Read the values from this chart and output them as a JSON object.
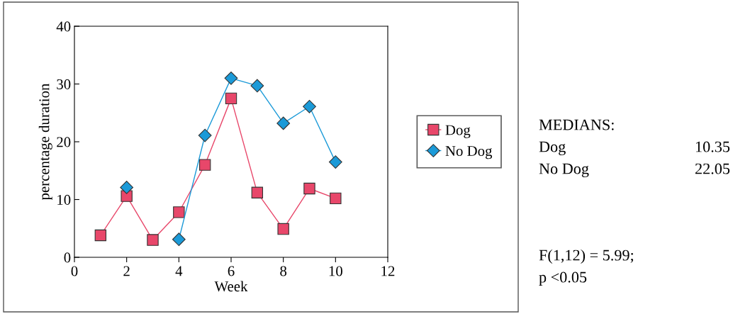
{
  "chart_data": {
    "type": "line",
    "xlabel": "Week",
    "ylabel": "percentage duration",
    "x": [
      1,
      2,
      3,
      4,
      5,
      6,
      7,
      8,
      9,
      10
    ],
    "series": [
      {
        "name": "Dog",
        "color": "#e8476a",
        "marker": "square",
        "values": [
          3.8,
          10.6,
          3.0,
          7.8,
          16.0,
          27.5,
          11.2,
          4.9,
          11.9,
          10.2
        ]
      },
      {
        "name": "No Dog",
        "color": "#1b9ad8",
        "marker": "diamond",
        "values": [
          null,
          12.1,
          null,
          3.1,
          21.1,
          31.0,
          29.7,
          23.2,
          26.1,
          16.5
        ]
      }
    ],
    "xlim": [
      0,
      12
    ],
    "xticks": [
      0,
      2,
      4,
      6,
      8,
      10,
      12
    ],
    "ylim": [
      0,
      40
    ],
    "yticks": [
      0,
      10,
      20,
      30,
      40
    ],
    "grid": false,
    "legend": "right",
    "line_style": "solid",
    "annotations": [
      "MEDIANS:",
      "Dog",
      "10.35",
      "No Dog",
      "22.05",
      "F(1,12) = 5.99;",
      "p <0.05"
    ]
  }
}
